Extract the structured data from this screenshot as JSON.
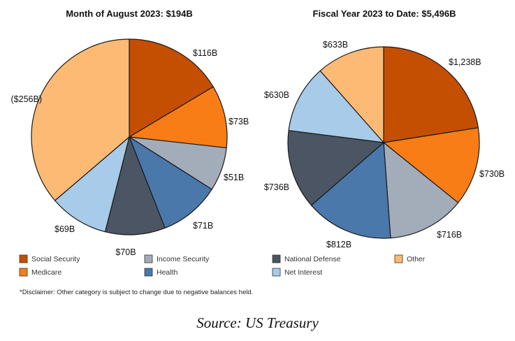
{
  "chart_data": [
    {
      "type": "pie",
      "title": "Month of August 2023: $194B",
      "slices": [
        {
          "category": "Social Security",
          "label": "$116B",
          "value": 116
        },
        {
          "category": "Medicare",
          "label": "$73B",
          "value": 73
        },
        {
          "category": "Income Security",
          "label": "$51B",
          "value": 51
        },
        {
          "category": "Health",
          "label": "$71B",
          "value": 71
        },
        {
          "category": "National Defense",
          "label": "$70B",
          "value": 70
        },
        {
          "category": "Net Interest",
          "label": "$69B",
          "value": 69
        },
        {
          "category": "Other",
          "label": "($256B)",
          "value": -256
        }
      ]
    },
    {
      "type": "pie",
      "title": "Fiscal Year 2023 to Date: $5,496B",
      "slices": [
        {
          "category": "Social Security",
          "label": "$1,238B",
          "value": 1238
        },
        {
          "category": "Medicare",
          "label": "$730B",
          "value": 730
        },
        {
          "category": "Income Security",
          "label": "$716B",
          "value": 716
        },
        {
          "category": "Health",
          "label": "$812B",
          "value": 812
        },
        {
          "category": "National Defense",
          "label": "$736B",
          "value": 736
        },
        {
          "category": "Net Interest",
          "label": "$630B",
          "value": 630
        },
        {
          "category": "Other",
          "label": "$633B",
          "value": 633
        }
      ]
    }
  ],
  "legend": [
    {
      "name": "Social Security",
      "color": "#c44f02"
    },
    {
      "name": "Income Security",
      "color": "#a3acb9"
    },
    {
      "name": "National Defense",
      "color": "#4b5563"
    },
    {
      "name": "Other",
      "color": "#fdba74"
    },
    {
      "name": "Medicare",
      "color": "#f97d16"
    },
    {
      "name": "Health",
      "color": "#4a78aa"
    },
    {
      "name": "Net Interest",
      "color": "#a7cbe8"
    }
  ],
  "disclaimer": "*Disclaimer: Other category is subject to change due to negative balances held.",
  "source": "Source: US Treasury"
}
